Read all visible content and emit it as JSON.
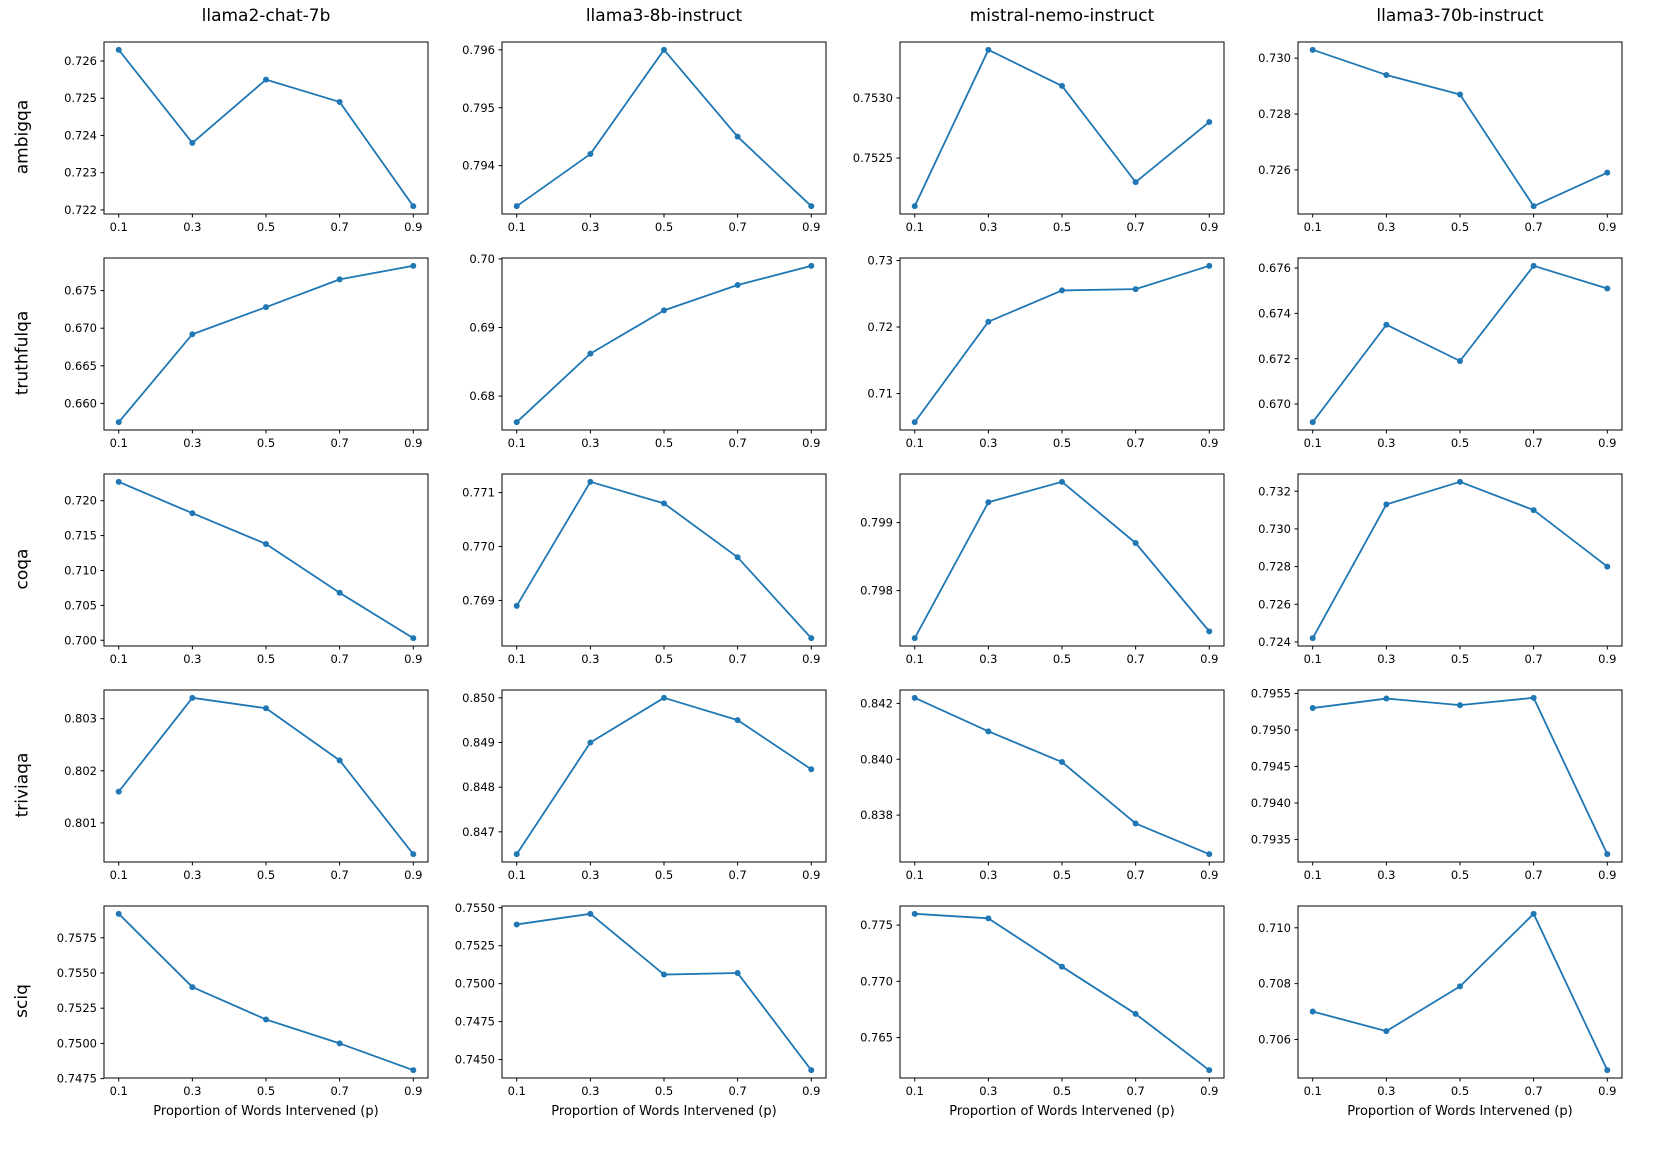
{
  "figure": {
    "xlabel": "Proportion of Words Intervened (p)",
    "line_color": "#1f77b4",
    "background": "#ffffff",
    "columns": [
      "llama2-chat-7b",
      "llama3-8b-instruct",
      "mistral-nemo-instruct",
      "llama3-70b-instruct"
    ],
    "rows": [
      "ambigqa",
      "truthfulqa",
      "coqa",
      "triviaqa",
      "sciq"
    ],
    "xticks": [
      "0.1",
      "0.3",
      "0.5",
      "0.7",
      "0.9"
    ]
  },
  "chart_data": [
    {
      "type": "line",
      "dataset": "ambigqa",
      "model": "llama2-chat-7b",
      "x": [
        0.1,
        0.3,
        0.5,
        0.7,
        0.9
      ],
      "y": [
        0.7263,
        0.7238,
        0.7255,
        0.7249,
        0.7221
      ],
      "yticks": [
        "0.722",
        "0.723",
        "0.724",
        "0.725",
        "0.726"
      ]
    },
    {
      "type": "line",
      "dataset": "ambigqa",
      "model": "llama3-8b-instruct",
      "x": [
        0.1,
        0.3,
        0.5,
        0.7,
        0.9
      ],
      "y": [
        0.7933,
        0.7942,
        0.796,
        0.7945,
        0.7933
      ],
      "yticks": [
        "0.794",
        "0.795",
        "0.796"
      ]
    },
    {
      "type": "line",
      "dataset": "ambigqa",
      "model": "mistral-nemo-instruct",
      "x": [
        0.1,
        0.3,
        0.5,
        0.7,
        0.9
      ],
      "y": [
        0.7521,
        0.7534,
        0.7531,
        0.7523,
        0.7528
      ],
      "yticks": [
        "0.7525",
        "0.7530"
      ]
    },
    {
      "type": "line",
      "dataset": "ambigqa",
      "model": "llama3-70b-instruct",
      "x": [
        0.1,
        0.3,
        0.5,
        0.7,
        0.9
      ],
      "y": [
        0.7303,
        0.7294,
        0.7287,
        0.7247,
        0.7259
      ],
      "yticks": [
        "0.726",
        "0.728",
        "0.730"
      ]
    },
    {
      "type": "line",
      "dataset": "truthfulqa",
      "model": "llama2-chat-7b",
      "x": [
        0.1,
        0.3,
        0.5,
        0.7,
        0.9
      ],
      "y": [
        0.6575,
        0.6692,
        0.6728,
        0.6765,
        0.6783
      ],
      "yticks": [
        "0.660",
        "0.665",
        "0.670",
        "0.675"
      ]
    },
    {
      "type": "line",
      "dataset": "truthfulqa",
      "model": "llama3-8b-instruct",
      "x": [
        0.1,
        0.3,
        0.5,
        0.7,
        0.9
      ],
      "y": [
        0.6762,
        0.6862,
        0.6925,
        0.6962,
        0.699
      ],
      "yticks": [
        "0.68",
        "0.69",
        "0.70"
      ]
    },
    {
      "type": "line",
      "dataset": "truthfulqa",
      "model": "mistral-nemo-instruct",
      "x": [
        0.1,
        0.3,
        0.5,
        0.7,
        0.9
      ],
      "y": [
        0.7057,
        0.7208,
        0.7255,
        0.7257,
        0.7292
      ],
      "yticks": [
        "0.71",
        "0.72",
        "0.73"
      ]
    },
    {
      "type": "line",
      "dataset": "truthfulqa",
      "model": "llama3-70b-instruct",
      "x": [
        0.1,
        0.3,
        0.5,
        0.7,
        0.9
      ],
      "y": [
        0.6692,
        0.6735,
        0.6719,
        0.6761,
        0.6751
      ],
      "yticks": [
        "0.670",
        "0.672",
        "0.674",
        "0.676"
      ]
    },
    {
      "type": "line",
      "dataset": "coqa",
      "model": "llama2-chat-7b",
      "x": [
        0.1,
        0.3,
        0.5,
        0.7,
        0.9
      ],
      "y": [
        0.7227,
        0.7182,
        0.7138,
        0.7068,
        0.7003
      ],
      "yticks": [
        "0.700",
        "0.705",
        "0.710",
        "0.715",
        "0.720"
      ]
    },
    {
      "type": "line",
      "dataset": "coqa",
      "model": "llama3-8b-instruct",
      "x": [
        0.1,
        0.3,
        0.5,
        0.7,
        0.9
      ],
      "y": [
        0.7689,
        0.7712,
        0.7708,
        0.7698,
        0.7683
      ],
      "yticks": [
        "0.769",
        "0.770",
        "0.771"
      ]
    },
    {
      "type": "line",
      "dataset": "coqa",
      "model": "mistral-nemo-instruct",
      "x": [
        0.1,
        0.3,
        0.5,
        0.7,
        0.9
      ],
      "y": [
        0.7973,
        0.7993,
        0.7996,
        0.7987,
        0.7974
      ],
      "yticks": [
        "0.798",
        "0.799"
      ]
    },
    {
      "type": "line",
      "dataset": "coqa",
      "model": "llama3-70b-instruct",
      "x": [
        0.1,
        0.3,
        0.5,
        0.7,
        0.9
      ],
      "y": [
        0.7242,
        0.7313,
        0.7325,
        0.731,
        0.728
      ],
      "yticks": [
        "0.724",
        "0.726",
        "0.728",
        "0.730",
        "0.732"
      ]
    },
    {
      "type": "line",
      "dataset": "triviaqa",
      "model": "llama2-chat-7b",
      "x": [
        0.1,
        0.3,
        0.5,
        0.7,
        0.9
      ],
      "y": [
        0.8016,
        0.8034,
        0.8032,
        0.8022,
        0.8004
      ],
      "yticks": [
        "0.801",
        "0.802",
        "0.803"
      ]
    },
    {
      "type": "line",
      "dataset": "triviaqa",
      "model": "llama3-8b-instruct",
      "x": [
        0.1,
        0.3,
        0.5,
        0.7,
        0.9
      ],
      "y": [
        0.8465,
        0.849,
        0.85,
        0.8495,
        0.8484
      ],
      "yticks": [
        "0.847",
        "0.848",
        "0.849",
        "0.850"
      ]
    },
    {
      "type": "line",
      "dataset": "triviaqa",
      "model": "mistral-nemo-instruct",
      "x": [
        0.1,
        0.3,
        0.5,
        0.7,
        0.9
      ],
      "y": [
        0.8422,
        0.841,
        0.8399,
        0.8377,
        0.8366
      ],
      "yticks": [
        "0.838",
        "0.840",
        "0.842"
      ]
    },
    {
      "type": "line",
      "dataset": "triviaqa",
      "model": "llama3-70b-instruct",
      "x": [
        0.1,
        0.3,
        0.5,
        0.7,
        0.9
      ],
      "y": [
        0.7953,
        0.79543,
        0.79534,
        0.79544,
        0.7933
      ],
      "yticks": [
        "0.7935",
        "0.7940",
        "0.7945",
        "0.7950",
        "0.7955"
      ]
    },
    {
      "type": "line",
      "dataset": "sciq",
      "model": "llama2-chat-7b",
      "x": [
        0.1,
        0.3,
        0.5,
        0.7,
        0.9
      ],
      "y": [
        0.7592,
        0.754,
        0.7517,
        0.75,
        0.7481
      ],
      "yticks": [
        "0.7475",
        "0.7500",
        "0.7525",
        "0.7550",
        "0.7575"
      ]
    },
    {
      "type": "line",
      "dataset": "sciq",
      "model": "llama3-8b-instruct",
      "x": [
        0.1,
        0.3,
        0.5,
        0.7,
        0.9
      ],
      "y": [
        0.7539,
        0.7546,
        0.7506,
        0.7507,
        0.7443
      ],
      "yticks": [
        "0.7450",
        "0.7475",
        "0.7500",
        "0.7525",
        "0.7550"
      ]
    },
    {
      "type": "line",
      "dataset": "sciq",
      "model": "mistral-nemo-instruct",
      "x": [
        0.1,
        0.3,
        0.5,
        0.7,
        0.9
      ],
      "y": [
        0.776,
        0.7756,
        0.7713,
        0.7671,
        0.7621
      ],
      "yticks": [
        "0.765",
        "0.770",
        "0.775"
      ]
    },
    {
      "type": "line",
      "dataset": "sciq",
      "model": "llama3-70b-instruct",
      "x": [
        0.1,
        0.3,
        0.5,
        0.7,
        0.9
      ],
      "y": [
        0.707,
        0.7063,
        0.7079,
        0.7105,
        0.7049
      ],
      "yticks": [
        "0.706",
        "0.708",
        "0.710"
      ]
    }
  ]
}
